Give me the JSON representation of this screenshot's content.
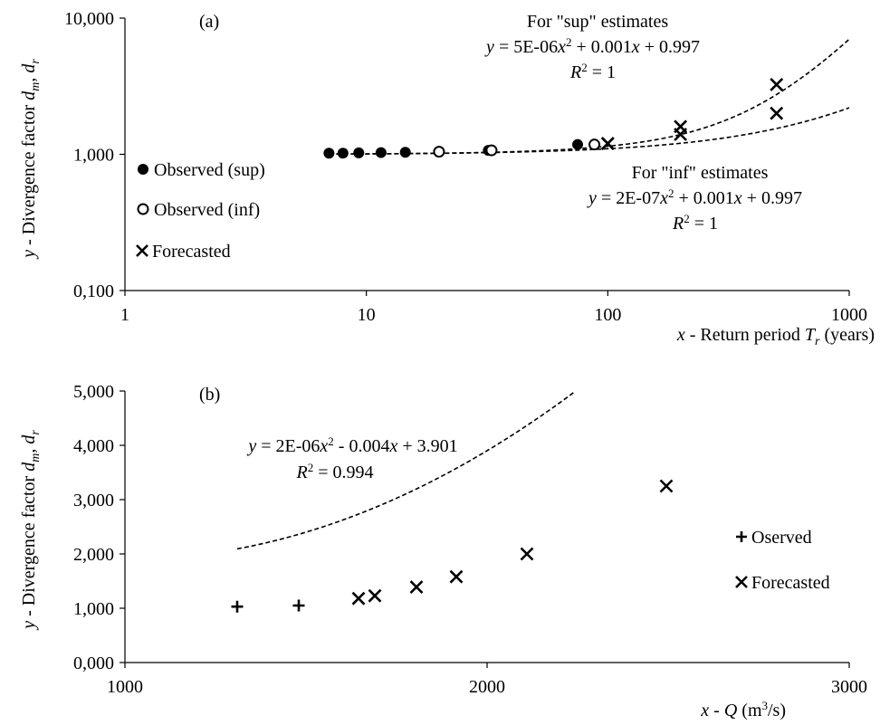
{
  "chart_data": [
    {
      "type": "scatter",
      "panel_label": "(a)",
      "x_scale": "log",
      "y_scale": "log",
      "xlim": [
        1,
        1000
      ],
      "ylim": [
        0.1,
        10
      ],
      "x_ticks": [
        "1",
        "10",
        "100",
        "1000"
      ],
      "y_ticks": [
        "0,100",
        "1,000",
        "10,000"
      ],
      "ylabel": {
        "prefix": "y",
        "text": " - Divergence factor ",
        "v1": "d",
        "s1": "m",
        "sep": ", ",
        "v2": "d",
        "s2": "r"
      },
      "xlabel": {
        "prefix": "x",
        "text": " - Return period ",
        "v": "T",
        "s": "r",
        "tail": " (years)"
      },
      "grid": false,
      "legend_position": "left",
      "series": [
        {
          "name": "Observed (sup)",
          "marker": "filled-circle",
          "x": [
            7,
            8,
            9.3,
            11.5,
            14.5,
            20,
            32,
            75
          ],
          "y": [
            1.02,
            1.02,
            1.025,
            1.03,
            1.035,
            1.045,
            1.07,
            1.18
          ]
        },
        {
          "name": "Observed (inf)",
          "marker": "open-circle",
          "x": [
            20,
            33,
            88
          ],
          "y": [
            1.045,
            1.07,
            1.18
          ]
        },
        {
          "name": "Forecasted",
          "marker": "x",
          "x": [
            100,
            200,
            500,
            100,
            200,
            500
          ],
          "y": [
            1.2,
            1.6,
            3.25,
            1.2,
            1.4,
            2.0
          ]
        }
      ],
      "trendlines": [
        {
          "label": "sup",
          "coef": [
            5e-06,
            0.001,
            0.997
          ],
          "x_range": [
            7,
            1000
          ]
        },
        {
          "label": "inf",
          "coef": [
            2e-07,
            0.001,
            0.997
          ],
          "x_range": [
            7,
            1000
          ]
        }
      ],
      "annotations": {
        "sup": {
          "heading": "For \"sup\" estimates",
          "eq_a": "5E-06",
          "eq_b": "+ 0.001",
          "eq_c": "+ 0.997",
          "r2": "= 1"
        },
        "inf": {
          "heading": "For \"inf\" estimates",
          "eq_a": "2E-07",
          "eq_b": "+ 0.001",
          "eq_c": "+ 0.997",
          "r2": "= 1"
        }
      }
    },
    {
      "type": "scatter",
      "panel_label": "(b)",
      "x_scale": "linear",
      "y_scale": "linear",
      "xlim": [
        1000,
        3000
      ],
      "ylim": [
        0,
        5
      ],
      "x_ticks": [
        "1000",
        "2000",
        "3000"
      ],
      "y_ticks": [
        "0,000",
        "1,000",
        "2,000",
        "3,000",
        "4,000",
        "5,000"
      ],
      "ylabel": {
        "prefix": "y",
        "text": " - Divergence factor ",
        "v1": "d",
        "s1": "m",
        "sep": ", ",
        "v2": "d",
        "s2": "r"
      },
      "xlabel": {
        "prefix": "x",
        "text": " - ",
        "v": "Q",
        "tail": " (m",
        "sup": "3",
        "tail2": "/s)"
      },
      "grid": false,
      "legend_position": "right",
      "series": [
        {
          "name": "Oserved",
          "marker": "plus",
          "x": [
            1310,
            1480
          ],
          "y": [
            1.03,
            1.05
          ]
        },
        {
          "name": "Forecasted",
          "marker": "x",
          "x": [
            1645,
            1690,
            1805,
            1915,
            2110,
            2495
          ],
          "y": [
            1.18,
            1.23,
            1.39,
            1.58,
            2.0,
            3.25
          ]
        }
      ],
      "trendlines": [
        {
          "coef": [
            2e-06,
            -0.004,
            3.901
          ],
          "x_range": [
            1310,
            3000
          ]
        }
      ],
      "annotations": {
        "fit": {
          "eq_a": "2E-06",
          "eq_b": "- 0.004",
          "eq_c": "+ 3.901",
          "r2": "= 0.994"
        }
      }
    }
  ]
}
